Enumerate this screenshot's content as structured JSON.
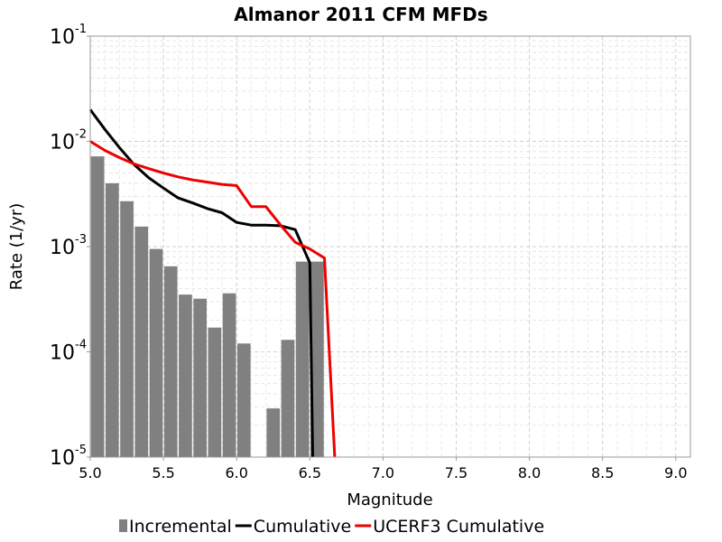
{
  "chart_data": {
    "type": "bar",
    "title": "Almanor 2011 CFM MFDs",
    "xlabel": "Magnitude",
    "ylabel": "Rate (1/yr)",
    "xlim": [
      5.0,
      9.1
    ],
    "ylim": [
      1e-05,
      0.1
    ],
    "yscale": "log",
    "grid": true,
    "legend_position": "bottom",
    "x_ticks": [
      "5.0",
      "5.5",
      "6.0",
      "6.5",
      "7.0",
      "7.5",
      "8.0",
      "8.5",
      "9.0"
    ],
    "y_ticks": [
      {
        "base": "10",
        "exp": "-1"
      },
      {
        "base": "10",
        "exp": "-2"
      },
      {
        "base": "10",
        "exp": "-3"
      },
      {
        "base": "10",
        "exp": "-4"
      },
      {
        "base": "10",
        "exp": "-5"
      }
    ],
    "colors": {
      "Incremental": "#808080",
      "Cumulative": "#000000",
      "UCERF3 Cumulative": "#ee0000"
    },
    "series": [
      {
        "name": "Incremental",
        "type": "bar",
        "bar_width": 0.1,
        "x": [
          5.05,
          5.15,
          5.25,
          5.35,
          5.45,
          5.55,
          5.65,
          5.75,
          5.85,
          5.95,
          6.05,
          6.25,
          6.35,
          6.45,
          6.55
        ],
        "y": [
          0.0072,
          0.004,
          0.0027,
          0.00155,
          0.00095,
          0.00065,
          0.00035,
          0.00032,
          0.00017,
          0.00036,
          0.00012,
          2.9e-05,
          0.00013,
          0.00072,
          0.00072
        ]
      },
      {
        "name": "Cumulative",
        "type": "line",
        "x": [
          5.0,
          5.1,
          5.2,
          5.3,
          5.4,
          5.5,
          5.6,
          5.7,
          5.8,
          5.9,
          6.0,
          6.1,
          6.2,
          6.3,
          6.4,
          6.5,
          6.52
        ],
        "y": [
          0.02,
          0.013,
          0.0087,
          0.006,
          0.0045,
          0.0036,
          0.0029,
          0.0026,
          0.0023,
          0.0021,
          0.0017,
          0.0016,
          0.0016,
          0.00158,
          0.00145,
          0.0007,
          1e-05
        ]
      },
      {
        "name": "UCERF3 Cumulative",
        "type": "line",
        "x": [
          5.0,
          5.1,
          5.2,
          5.3,
          5.4,
          5.5,
          5.6,
          5.7,
          5.8,
          5.9,
          6.0,
          6.1,
          6.2,
          6.3,
          6.4,
          6.5,
          6.6,
          6.67
        ],
        "y": [
          0.01,
          0.0082,
          0.007,
          0.0061,
          0.0055,
          0.005,
          0.0046,
          0.0043,
          0.0041,
          0.0039,
          0.0038,
          0.0024,
          0.0024,
          0.0016,
          0.0011,
          0.00095,
          0.00078,
          1e-05
        ]
      }
    ]
  }
}
